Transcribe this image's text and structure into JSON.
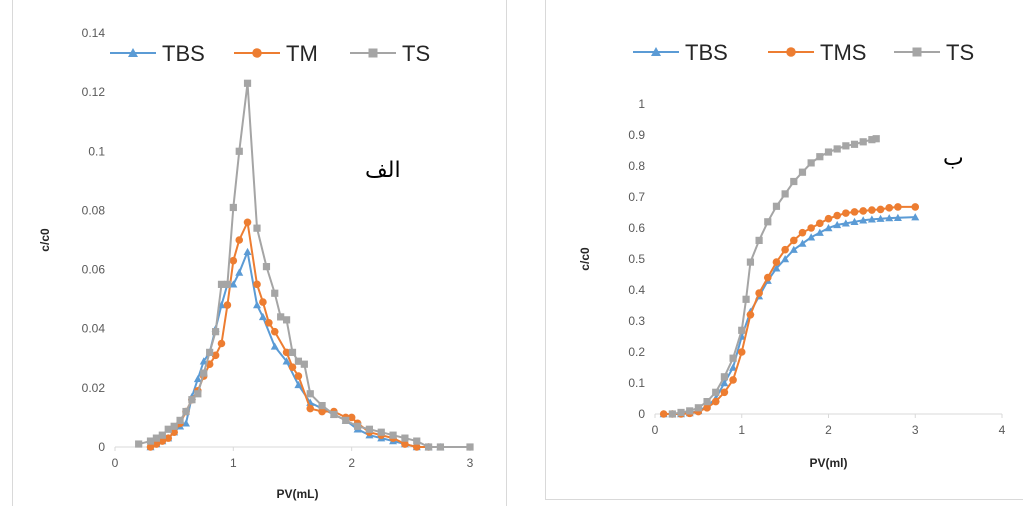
{
  "chart_data": [
    {
      "type": "line",
      "panel_label": "الف",
      "xlabel": "PV(mL)",
      "ylabel": "c/c0",
      "xlim": [
        0,
        3
      ],
      "ylim": [
        0,
        0.14
      ],
      "xticks": [
        "0",
        "1",
        "2",
        "3"
      ],
      "yticks": [
        "0",
        "0.02",
        "0.04",
        "0.06",
        "0.08",
        "0.1",
        "0.12",
        "0.14"
      ],
      "legend_position": "top",
      "series": [
        {
          "name": "TBS",
          "color": "#5b9bd5",
          "marker": "triangle",
          "points": [
            [
              0.3,
              0.0
            ],
            [
              0.35,
              0.001
            ],
            [
              0.4,
              0.002
            ],
            [
              0.45,
              0.003
            ],
            [
              0.5,
              0.005
            ],
            [
              0.55,
              0.007
            ],
            [
              0.6,
              0.008
            ],
            [
              0.65,
              0.017
            ],
            [
              0.7,
              0.023
            ],
            [
              0.75,
              0.029
            ],
            [
              0.8,
              0.032
            ],
            [
              0.85,
              0.04
            ],
            [
              0.9,
              0.048
            ],
            [
              0.95,
              0.055
            ],
            [
              1.0,
              0.055
            ],
            [
              1.05,
              0.059
            ],
            [
              1.12,
              0.066
            ],
            [
              1.2,
              0.048
            ],
            [
              1.25,
              0.044
            ],
            [
              1.35,
              0.034
            ],
            [
              1.45,
              0.029
            ],
            [
              1.55,
              0.021
            ],
            [
              1.65,
              0.015
            ],
            [
              1.75,
              0.013
            ],
            [
              1.85,
              0.011
            ],
            [
              1.95,
              0.009
            ],
            [
              2.05,
              0.006
            ],
            [
              2.15,
              0.004
            ],
            [
              2.25,
              0.003
            ],
            [
              2.35,
              0.002
            ],
            [
              2.45,
              0.001
            ],
            [
              2.55,
              0.0
            ],
            [
              2.65,
              0.0
            ],
            [
              2.75,
              0.0
            ]
          ]
        },
        {
          "name": "TM",
          "color": "#ed7d31",
          "marker": "circle",
          "points": [
            [
              0.3,
              0.0
            ],
            [
              0.35,
              0.001
            ],
            [
              0.4,
              0.002
            ],
            [
              0.45,
              0.003
            ],
            [
              0.5,
              0.005
            ],
            [
              0.55,
              0.008
            ],
            [
              0.6,
              0.012
            ],
            [
              0.65,
              0.016
            ],
            [
              0.7,
              0.019
            ],
            [
              0.75,
              0.024
            ],
            [
              0.8,
              0.028
            ],
            [
              0.85,
              0.031
            ],
            [
              0.9,
              0.035
            ],
            [
              0.95,
              0.048
            ],
            [
              1.0,
              0.063
            ],
            [
              1.05,
              0.07
            ],
            [
              1.12,
              0.076
            ],
            [
              1.2,
              0.055
            ],
            [
              1.25,
              0.049
            ],
            [
              1.3,
              0.042
            ],
            [
              1.35,
              0.039
            ],
            [
              1.45,
              0.032
            ],
            [
              1.5,
              0.027
            ],
            [
              1.55,
              0.024
            ],
            [
              1.65,
              0.013
            ],
            [
              1.75,
              0.012
            ],
            [
              1.85,
              0.012
            ],
            [
              1.95,
              0.01
            ],
            [
              2.0,
              0.01
            ],
            [
              2.05,
              0.008
            ],
            [
              2.15,
              0.005
            ],
            [
              2.25,
              0.004
            ],
            [
              2.35,
              0.003
            ],
            [
              2.45,
              0.001
            ],
            [
              2.55,
              0.0
            ],
            [
              2.65,
              0.0
            ]
          ]
        },
        {
          "name": "TS",
          "color": "#a5a5a5",
          "marker": "square",
          "points": [
            [
              0.2,
              0.001
            ],
            [
              0.3,
              0.002
            ],
            [
              0.35,
              0.003
            ],
            [
              0.4,
              0.004
            ],
            [
              0.45,
              0.006
            ],
            [
              0.5,
              0.007
            ],
            [
              0.55,
              0.009
            ],
            [
              0.6,
              0.012
            ],
            [
              0.65,
              0.016
            ],
            [
              0.7,
              0.018
            ],
            [
              0.75,
              0.025
            ],
            [
              0.8,
              0.032
            ],
            [
              0.85,
              0.039
            ],
            [
              0.9,
              0.055
            ],
            [
              0.95,
              0.055
            ],
            [
              1.0,
              0.081
            ],
            [
              1.05,
              0.1
            ],
            [
              1.12,
              0.123
            ],
            [
              1.2,
              0.074
            ],
            [
              1.28,
              0.061
            ],
            [
              1.35,
              0.052
            ],
            [
              1.4,
              0.044
            ],
            [
              1.45,
              0.043
            ],
            [
              1.5,
              0.032
            ],
            [
              1.55,
              0.029
            ],
            [
              1.6,
              0.028
            ],
            [
              1.65,
              0.018
            ],
            [
              1.75,
              0.014
            ],
            [
              1.85,
              0.011
            ],
            [
              1.95,
              0.009
            ],
            [
              2.05,
              0.007
            ],
            [
              2.15,
              0.006
            ],
            [
              2.25,
              0.005
            ],
            [
              2.35,
              0.004
            ],
            [
              2.45,
              0.003
            ],
            [
              2.55,
              0.002
            ],
            [
              2.65,
              0.0
            ],
            [
              2.75,
              0.0
            ],
            [
              3.0,
              0.0
            ]
          ]
        }
      ]
    },
    {
      "type": "line",
      "panel_label": "ب",
      "xlabel": "PV(ml)",
      "ylabel": "c/c0",
      "xlim": [
        0,
        4
      ],
      "ylim": [
        0,
        1
      ],
      "xticks": [
        "0",
        "1",
        "2",
        "3",
        "4"
      ],
      "yticks": [
        "0",
        "0.1",
        "0.2",
        "0.3",
        "0.4",
        "0.5",
        "0.6",
        "0.7",
        "0.8",
        "0.9",
        "1"
      ],
      "legend_position": "top",
      "series": [
        {
          "name": "TBS",
          "color": "#5b9bd5",
          "marker": "triangle",
          "points": [
            [
              0.1,
              0.0
            ],
            [
              0.2,
              0.0
            ],
            [
              0.3,
              0.0
            ],
            [
              0.4,
              0.003
            ],
            [
              0.5,
              0.01
            ],
            [
              0.6,
              0.025
            ],
            [
              0.7,
              0.05
            ],
            [
              0.8,
              0.1
            ],
            [
              0.9,
              0.15
            ],
            [
              1.0,
              0.25
            ],
            [
              1.1,
              0.33
            ],
            [
              1.2,
              0.38
            ],
            [
              1.3,
              0.43
            ],
            [
              1.4,
              0.47
            ],
            [
              1.5,
              0.5
            ],
            [
              1.6,
              0.53
            ],
            [
              1.7,
              0.55
            ],
            [
              1.8,
              0.57
            ],
            [
              1.9,
              0.585
            ],
            [
              2.0,
              0.6
            ],
            [
              2.1,
              0.61
            ],
            [
              2.2,
              0.615
            ],
            [
              2.3,
              0.62
            ],
            [
              2.4,
              0.625
            ],
            [
              2.5,
              0.628
            ],
            [
              2.6,
              0.63
            ],
            [
              2.7,
              0.632
            ],
            [
              2.8,
              0.633
            ],
            [
              3.0,
              0.635
            ]
          ]
        },
        {
          "name": "TMS",
          "color": "#ed7d31",
          "marker": "circle",
          "points": [
            [
              0.1,
              0.0
            ],
            [
              0.2,
              0.0
            ],
            [
              0.3,
              0.0
            ],
            [
              0.4,
              0.002
            ],
            [
              0.5,
              0.008
            ],
            [
              0.6,
              0.02
            ],
            [
              0.7,
              0.04
            ],
            [
              0.8,
              0.07
            ],
            [
              0.9,
              0.11
            ],
            [
              1.0,
              0.2
            ],
            [
              1.1,
              0.32
            ],
            [
              1.2,
              0.39
            ],
            [
              1.3,
              0.44
            ],
            [
              1.4,
              0.49
            ],
            [
              1.5,
              0.53
            ],
            [
              1.6,
              0.56
            ],
            [
              1.7,
              0.585
            ],
            [
              1.8,
              0.6
            ],
            [
              1.9,
              0.615
            ],
            [
              2.0,
              0.63
            ],
            [
              2.1,
              0.64
            ],
            [
              2.2,
              0.648
            ],
            [
              2.3,
              0.652
            ],
            [
              2.4,
              0.655
            ],
            [
              2.5,
              0.658
            ],
            [
              2.6,
              0.66
            ],
            [
              2.7,
              0.665
            ],
            [
              2.8,
              0.668
            ],
            [
              3.0,
              0.668
            ]
          ]
        },
        {
          "name": "TS",
          "color": "#a5a5a5",
          "marker": "square",
          "points": [
            [
              0.2,
              0.0
            ],
            [
              0.3,
              0.005
            ],
            [
              0.4,
              0.01
            ],
            [
              0.5,
              0.02
            ],
            [
              0.6,
              0.04
            ],
            [
              0.7,
              0.07
            ],
            [
              0.8,
              0.12
            ],
            [
              0.9,
              0.18
            ],
            [
              1.0,
              0.27
            ],
            [
              1.05,
              0.37
            ],
            [
              1.1,
              0.49
            ],
            [
              1.2,
              0.56
            ],
            [
              1.3,
              0.62
            ],
            [
              1.4,
              0.67
            ],
            [
              1.5,
              0.71
            ],
            [
              1.6,
              0.75
            ],
            [
              1.7,
              0.78
            ],
            [
              1.8,
              0.81
            ],
            [
              1.9,
              0.83
            ],
            [
              2.0,
              0.845
            ],
            [
              2.1,
              0.855
            ],
            [
              2.2,
              0.865
            ],
            [
              2.3,
              0.87
            ],
            [
              2.4,
              0.878
            ],
            [
              2.5,
              0.885
            ],
            [
              2.55,
              0.888
            ]
          ]
        }
      ]
    }
  ]
}
